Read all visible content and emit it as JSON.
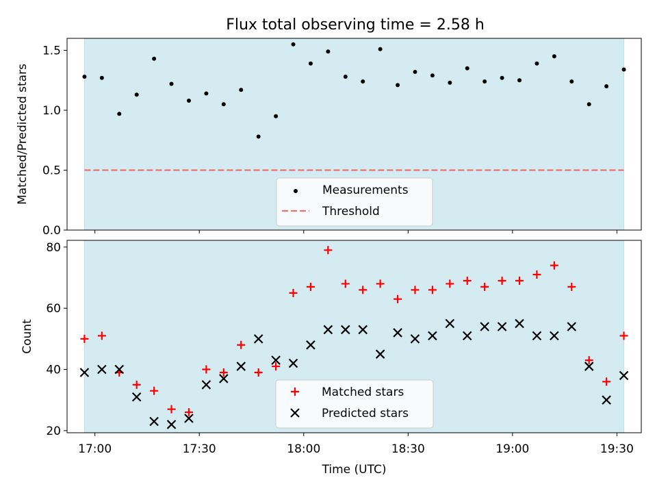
{
  "title": "Flux total observing time = 2.58 h",
  "colors": {
    "shade": "#d4ebf1",
    "measure": "#000000",
    "threshold": "#f07070",
    "matched": "#ff0000",
    "predicted": "#000000"
  },
  "chart_data": [
    {
      "type": "scatter",
      "ylabel": "Matched/Predicted stars",
      "ylim": [
        0,
        1.6
      ],
      "yticks": [
        0.0,
        0.5,
        1.0,
        1.5
      ],
      "ytick_labels": [
        "0.0",
        "0.5",
        "1.0",
        "1.5"
      ],
      "xlim": [
        "16:52",
        "19:37"
      ],
      "shaded_span": [
        "16:57",
        "19:32"
      ],
      "grid": false,
      "legend": "lower-center",
      "series": [
        {
          "name": "Measurements",
          "marker": "dot",
          "x": [
            "16:57",
            "17:02",
            "17:07",
            "17:12",
            "17:17",
            "17:22",
            "17:27",
            "17:32",
            "17:37",
            "17:42",
            "17:47",
            "17:52",
            "17:57",
            "18:02",
            "18:07",
            "18:12",
            "18:17",
            "18:22",
            "18:27",
            "18:32",
            "18:37",
            "18:42",
            "18:47",
            "18:52",
            "18:57",
            "19:02",
            "19:07",
            "19:12",
            "19:17",
            "19:22",
            "19:27",
            "19:32"
          ],
          "y": [
            1.28,
            1.27,
            0.97,
            1.13,
            1.43,
            1.22,
            1.08,
            1.14,
            1.05,
            1.17,
            0.78,
            0.95,
            1.55,
            1.39,
            1.49,
            1.28,
            1.24,
            1.51,
            1.21,
            1.32,
            1.29,
            1.23,
            1.35,
            1.24,
            1.27,
            1.25,
            1.39,
            1.45,
            1.24,
            1.05,
            1.2,
            1.34
          ]
        },
        {
          "name": "Threshold",
          "style": "dashed",
          "x": [
            "16:57",
            "19:32"
          ],
          "y": [
            0.5,
            0.5
          ]
        }
      ]
    },
    {
      "type": "scatter",
      "xlabel": "Time (UTC)",
      "ylabel": "Count",
      "ylim": [
        19.3,
        82.2
      ],
      "yticks": [
        20,
        40,
        60,
        80
      ],
      "ytick_labels": [
        "20",
        "40",
        "60",
        "80"
      ],
      "xlim": [
        "16:52",
        "19:37"
      ],
      "xticks": [
        "17:00",
        "17:30",
        "18:00",
        "18:30",
        "19:00",
        "19:30"
      ],
      "xtick_labels": [
        "17:00",
        "17:30",
        "18:00",
        "18:30",
        "19:00",
        "19:30"
      ],
      "shaded_span": [
        "16:57",
        "19:32"
      ],
      "grid": false,
      "legend": "lower-center",
      "series": [
        {
          "name": "Matched stars",
          "marker": "plus",
          "x": [
            "16:57",
            "17:02",
            "17:07",
            "17:12",
            "17:17",
            "17:22",
            "17:27",
            "17:32",
            "17:37",
            "17:42",
            "17:47",
            "17:52",
            "17:57",
            "18:02",
            "18:07",
            "18:12",
            "18:17",
            "18:22",
            "18:27",
            "18:32",
            "18:37",
            "18:42",
            "18:47",
            "18:52",
            "18:57",
            "19:02",
            "19:07",
            "19:12",
            "19:17",
            "19:22",
            "19:27",
            "19:32"
          ],
          "y": [
            50,
            51,
            39,
            35,
            33,
            27,
            26,
            40,
            39,
            48,
            39,
            41,
            65,
            67,
            79,
            68,
            66,
            68,
            63,
            66,
            66,
            68,
            69,
            67,
            69,
            69,
            71,
            74,
            67,
            43,
            36,
            51
          ]
        },
        {
          "name": "Predicted stars",
          "marker": "x",
          "x": [
            "16:57",
            "17:02",
            "17:07",
            "17:12",
            "17:17",
            "17:22",
            "17:27",
            "17:32",
            "17:37",
            "17:42",
            "17:47",
            "17:52",
            "17:57",
            "18:02",
            "18:07",
            "18:12",
            "18:17",
            "18:22",
            "18:27",
            "18:32",
            "18:37",
            "18:42",
            "18:47",
            "18:52",
            "18:57",
            "19:02",
            "19:07",
            "19:12",
            "19:17",
            "19:22",
            "19:27",
            "19:32"
          ],
          "y": [
            39,
            40,
            40,
            31,
            23,
            22,
            24,
            35,
            37,
            41,
            50,
            43,
            42,
            48,
            53,
            53,
            53,
            45,
            52,
            50,
            51,
            55,
            51,
            54,
            54,
            55,
            51,
            51,
            54,
            41,
            30,
            38
          ]
        }
      ]
    }
  ]
}
